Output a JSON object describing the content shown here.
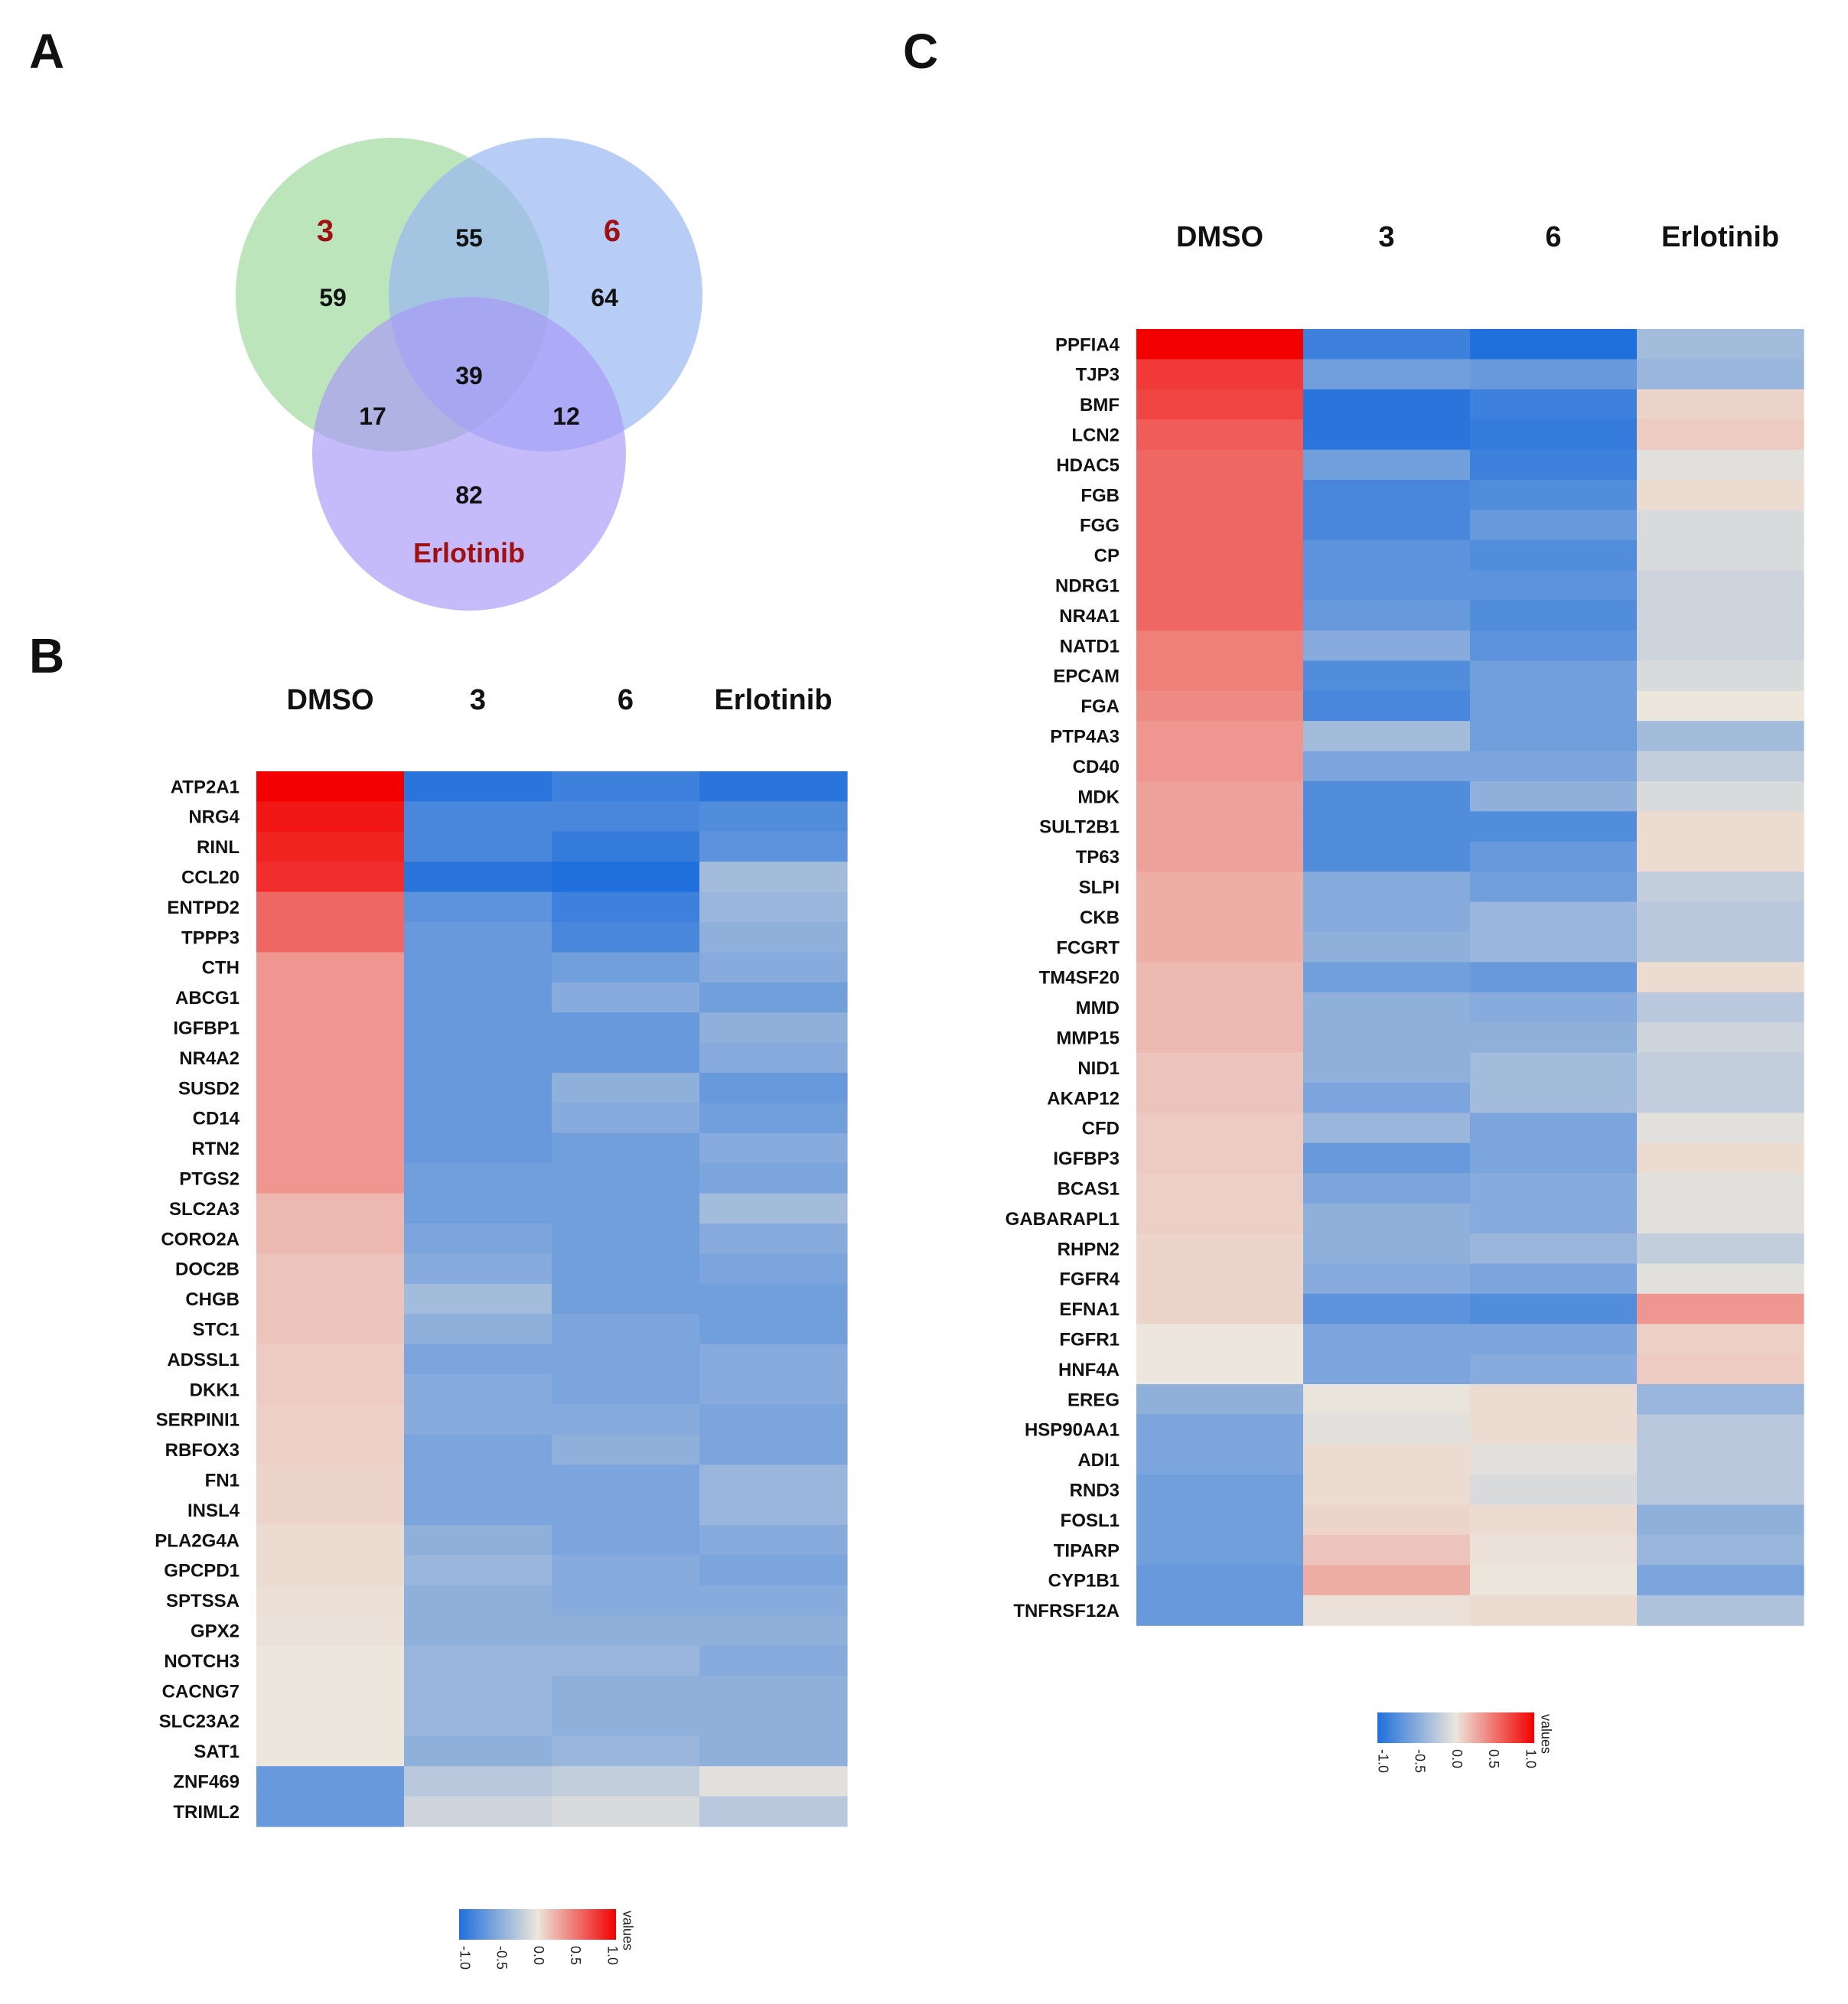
{
  "panels": {
    "a": "A",
    "b": "B",
    "c": "C"
  },
  "colors": {
    "low": "#1f6fdc",
    "mid": "#ece6dc",
    "high": "#f20000",
    "highlight_text": "#a01010",
    "venn_green": "#a7dca5",
    "venn_blue": "#9ab8f2",
    "venn_purple": "#a896f7"
  },
  "chart_data": [
    {
      "type": "venn",
      "panel": "A",
      "sets": [
        "3",
        "6",
        "Erlotinib"
      ],
      "regions": {
        "only_3": 59,
        "only_6": 64,
        "only_erlotinib": 82,
        "3_and_6": 55,
        "3_and_erlotinib": 17,
        "6_and_erlotinib": 12,
        "all_three": 39
      }
    },
    {
      "type": "heatmap",
      "panel": "B",
      "columns": [
        "DMSO",
        "3",
        "6",
        "Erlotinib"
      ],
      "legend": {
        "title": "values",
        "ticks": [
          "-1.0",
          "-0.5",
          "0.0",
          "0.5",
          "1.0"
        ],
        "range": [
          -1,
          1
        ]
      },
      "rows": [
        {
          "gene": "ATP2A1",
          "values": [
            1.0,
            -0.95,
            -0.85,
            -0.95
          ]
        },
        {
          "gene": "NRG4",
          "values": [
            0.9,
            -0.8,
            -0.8,
            -0.75
          ]
        },
        {
          "gene": "RINL",
          "values": [
            0.85,
            -0.8,
            -0.9,
            -0.7
          ]
        },
        {
          "gene": "CCL20",
          "values": [
            0.8,
            -0.95,
            -1.0,
            -0.35
          ]
        },
        {
          "gene": "ENTPD2",
          "values": [
            0.55,
            -0.7,
            -0.85,
            -0.4
          ]
        },
        {
          "gene": "TPPP3",
          "values": [
            0.55,
            -0.65,
            -0.8,
            -0.45
          ]
        },
        {
          "gene": "CTH",
          "values": [
            0.35,
            -0.65,
            -0.6,
            -0.5
          ]
        },
        {
          "gene": "ABCG1",
          "values": [
            0.35,
            -0.65,
            -0.5,
            -0.6
          ]
        },
        {
          "gene": "IGFBP1",
          "values": [
            0.35,
            -0.65,
            -0.65,
            -0.45
          ]
        },
        {
          "gene": "NR4A2",
          "values": [
            0.35,
            -0.65,
            -0.65,
            -0.5
          ]
        },
        {
          "gene": "SUSD2",
          "values": [
            0.35,
            -0.65,
            -0.45,
            -0.65
          ]
        },
        {
          "gene": "CD14",
          "values": [
            0.35,
            -0.65,
            -0.5,
            -0.6
          ]
        },
        {
          "gene": "RTN2",
          "values": [
            0.35,
            -0.65,
            -0.6,
            -0.5
          ]
        },
        {
          "gene": "PTGS2",
          "values": [
            0.35,
            -0.6,
            -0.6,
            -0.55
          ]
        },
        {
          "gene": "SLC2A3",
          "values": [
            0.2,
            -0.6,
            -0.6,
            -0.35
          ]
        },
        {
          "gene": "CORO2A",
          "values": [
            0.2,
            -0.55,
            -0.6,
            -0.5
          ]
        },
        {
          "gene": "DOC2B",
          "values": [
            0.15,
            -0.5,
            -0.6,
            -0.55
          ]
        },
        {
          "gene": "CHGB",
          "values": [
            0.15,
            -0.35,
            -0.6,
            -0.6
          ]
        },
        {
          "gene": "STC1",
          "values": [
            0.15,
            -0.45,
            -0.55,
            -0.6
          ]
        },
        {
          "gene": "ADSSL1",
          "values": [
            0.12,
            -0.55,
            -0.55,
            -0.5
          ]
        },
        {
          "gene": "DKK1",
          "values": [
            0.12,
            -0.5,
            -0.55,
            -0.5
          ]
        },
        {
          "gene": "SERPINI1",
          "values": [
            0.1,
            -0.5,
            -0.5,
            -0.55
          ]
        },
        {
          "gene": "RBFOX3",
          "values": [
            0.1,
            -0.55,
            -0.45,
            -0.55
          ]
        },
        {
          "gene": "FN1",
          "values": [
            0.08,
            -0.55,
            -0.55,
            -0.4
          ]
        },
        {
          "gene": "INSL4",
          "values": [
            0.08,
            -0.55,
            -0.55,
            -0.4
          ]
        },
        {
          "gene": "PLA2G4A",
          "values": [
            0.05,
            -0.45,
            -0.55,
            -0.5
          ]
        },
        {
          "gene": "GPCPD1",
          "values": [
            0.05,
            -0.4,
            -0.5,
            -0.55
          ]
        },
        {
          "gene": "SPTSSA",
          "values": [
            0.03,
            -0.45,
            -0.5,
            -0.5
          ]
        },
        {
          "gene": "GPX2",
          "values": [
            0.02,
            -0.45,
            -0.45,
            -0.45
          ]
        },
        {
          "gene": "NOTCH3",
          "values": [
            0.0,
            -0.4,
            -0.4,
            -0.5
          ]
        },
        {
          "gene": "CACNG7",
          "values": [
            0.0,
            -0.4,
            -0.45,
            -0.45
          ]
        },
        {
          "gene": "SLC23A2",
          "values": [
            0.0,
            -0.4,
            -0.45,
            -0.45
          ]
        },
        {
          "gene": "SAT1",
          "values": [
            0.0,
            -0.45,
            -0.4,
            -0.45
          ]
        },
        {
          "gene": "ZNF469",
          "values": [
            -0.65,
            -0.25,
            -0.2,
            -0.05
          ]
        },
        {
          "gene": "TRIML2",
          "values": [
            -0.65,
            -0.15,
            -0.1,
            -0.25
          ]
        }
      ]
    },
    {
      "type": "heatmap",
      "panel": "C",
      "columns": [
        "DMSO",
        "3",
        "6",
        "Erlotinib"
      ],
      "legend": {
        "title": "values",
        "ticks": [
          "-1.0",
          "-0.5",
          "0.0",
          "0.5",
          "1.0"
        ],
        "range": [
          -1,
          1
        ]
      },
      "rows": [
        {
          "gene": "PPFIA4",
          "values": [
            1.0,
            -0.85,
            -1.0,
            -0.35
          ]
        },
        {
          "gene": "TJP3",
          "values": [
            0.75,
            -0.6,
            -0.65,
            -0.4
          ]
        },
        {
          "gene": "BMF",
          "values": [
            0.7,
            -0.95,
            -0.85,
            0.08
          ]
        },
        {
          "gene": "LCN2",
          "values": [
            0.6,
            -0.95,
            -0.9,
            0.12
          ]
        },
        {
          "gene": "HDAC5",
          "values": [
            0.55,
            -0.6,
            -0.85,
            -0.05
          ]
        },
        {
          "gene": "FGB",
          "values": [
            0.55,
            -0.8,
            -0.75,
            0.05
          ]
        },
        {
          "gene": "FGG",
          "values": [
            0.55,
            -0.8,
            -0.65,
            -0.1
          ]
        },
        {
          "gene": "CP",
          "values": [
            0.55,
            -0.7,
            -0.75,
            -0.1
          ]
        },
        {
          "gene": "NDRG1",
          "values": [
            0.55,
            -0.7,
            -0.7,
            -0.15
          ]
        },
        {
          "gene": "NR4A1",
          "values": [
            0.55,
            -0.65,
            -0.75,
            -0.15
          ]
        },
        {
          "gene": "NATD1",
          "values": [
            0.45,
            -0.5,
            -0.7,
            -0.15
          ]
        },
        {
          "gene": "EPCAM",
          "values": [
            0.45,
            -0.75,
            -0.6,
            -0.1
          ]
        },
        {
          "gene": "FGA",
          "values": [
            0.4,
            -0.8,
            -0.6,
            0.0
          ]
        },
        {
          "gene": "PTP4A3",
          "values": [
            0.35,
            -0.35,
            -0.6,
            -0.35
          ]
        },
        {
          "gene": "CD40",
          "values": [
            0.35,
            -0.55,
            -0.55,
            -0.2
          ]
        },
        {
          "gene": "MDK",
          "values": [
            0.3,
            -0.75,
            -0.45,
            -0.1
          ]
        },
        {
          "gene": "SULT2B1",
          "values": [
            0.3,
            -0.75,
            -0.75,
            0.05
          ]
        },
        {
          "gene": "TP63",
          "values": [
            0.3,
            -0.75,
            -0.65,
            0.05
          ]
        },
        {
          "gene": "SLPI",
          "values": [
            0.25,
            -0.5,
            -0.6,
            -0.2
          ]
        },
        {
          "gene": "CKB",
          "values": [
            0.25,
            -0.5,
            -0.4,
            -0.25
          ]
        },
        {
          "gene": "FCGRT",
          "values": [
            0.25,
            -0.45,
            -0.4,
            -0.25
          ]
        },
        {
          "gene": "TM4SF20",
          "values": [
            0.2,
            -0.6,
            -0.65,
            0.05
          ]
        },
        {
          "gene": "MMD",
          "values": [
            0.2,
            -0.45,
            -0.5,
            -0.25
          ]
        },
        {
          "gene": "MMP15",
          "values": [
            0.2,
            -0.45,
            -0.45,
            -0.15
          ]
        },
        {
          "gene": "NID1",
          "values": [
            0.15,
            -0.45,
            -0.35,
            -0.2
          ]
        },
        {
          "gene": "AKAP12",
          "values": [
            0.15,
            -0.55,
            -0.35,
            -0.2
          ]
        },
        {
          "gene": "CFD",
          "values": [
            0.12,
            -0.4,
            -0.55,
            -0.05
          ]
        },
        {
          "gene": "IGFBP3",
          "values": [
            0.12,
            -0.65,
            -0.55,
            0.05
          ]
        },
        {
          "gene": "BCAS1",
          "values": [
            0.1,
            -0.55,
            -0.5,
            -0.05
          ]
        },
        {
          "gene": "GABARAPL1",
          "values": [
            0.1,
            -0.45,
            -0.5,
            -0.05
          ]
        },
        {
          "gene": "RHPN2",
          "values": [
            0.08,
            -0.45,
            -0.4,
            -0.2
          ]
        },
        {
          "gene": "FGFR4",
          "values": [
            0.08,
            -0.5,
            -0.55,
            -0.05
          ]
        },
        {
          "gene": "EFNA1",
          "values": [
            0.08,
            -0.7,
            -0.75,
            0.35
          ]
        },
        {
          "gene": "FGFR1",
          "values": [
            0.0,
            -0.55,
            -0.55,
            0.1
          ]
        },
        {
          "gene": "HNF4A",
          "values": [
            0.0,
            -0.55,
            -0.5,
            0.12
          ]
        },
        {
          "gene": "EREG",
          "values": [
            -0.45,
            -0.02,
            0.05,
            -0.4
          ]
        },
        {
          "gene": "HSP90AA1",
          "values": [
            -0.55,
            -0.05,
            0.05,
            -0.25
          ]
        },
        {
          "gene": "ADI1",
          "values": [
            -0.55,
            0.05,
            -0.05,
            -0.25
          ]
        },
        {
          "gene": "RND3",
          "values": [
            -0.6,
            0.05,
            -0.1,
            -0.25
          ]
        },
        {
          "gene": "FOSL1",
          "values": [
            -0.6,
            0.08,
            0.05,
            -0.45
          ]
        },
        {
          "gene": "TIPARP",
          "values": [
            -0.6,
            0.15,
            0.02,
            -0.4
          ]
        },
        {
          "gene": "CYP1B1",
          "values": [
            -0.65,
            0.25,
            0.0,
            -0.55
          ]
        },
        {
          "gene": "TNFRSF12A",
          "values": [
            -0.65,
            0.02,
            0.05,
            -0.3
          ]
        }
      ]
    }
  ]
}
